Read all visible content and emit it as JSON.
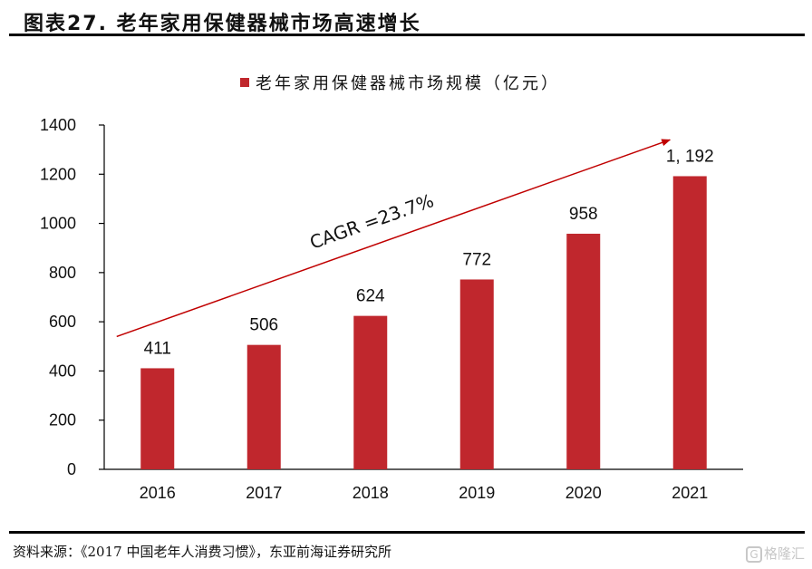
{
  "header": {
    "title": "图表27. 老年家用保健器械市场高速增长"
  },
  "footer": {
    "source": "资料来源：《2017 中国老年人消费习惯》，东亚前海证券研究所",
    "watermark": "格隆汇",
    "watermark_icon": "G"
  },
  "colors": {
    "bar": "#C0272D",
    "arrow": "#C00000",
    "axis": "#000000"
  },
  "chart_data": {
    "type": "bar",
    "title": "图表27. 老年家用保健器械市场高速增长",
    "categories": [
      "2016",
      "2017",
      "2018",
      "2019",
      "2020",
      "2021"
    ],
    "series": [
      {
        "name": "老年家用保健器械市场规模（亿元）",
        "values": [
          411,
          506,
          624,
          772,
          958,
          1192
        ]
      }
    ],
    "data_labels": [
      "411",
      "506",
      "624",
      "772",
      "958",
      "1, 192"
    ],
    "ylim": [
      0,
      1400
    ],
    "yticks": [
      0,
      200,
      400,
      600,
      800,
      1000,
      1200,
      1400
    ],
    "ytick_labels": [
      "0",
      "200",
      "400",
      "600",
      "800",
      "1000",
      "1200",
      "1400"
    ],
    "xlabel": "",
    "ylabel": "",
    "grid": false,
    "legend": {
      "position": "top-center",
      "entries": [
        "老年家用保健器械市场规模（亿元）"
      ]
    },
    "annotations": [
      {
        "type": "arrow",
        "text": "CAGR =23.7%",
        "from": {
          "category": "2016",
          "value": 540
        },
        "to": {
          "category": "2021",
          "value": 1340
        }
      }
    ]
  }
}
